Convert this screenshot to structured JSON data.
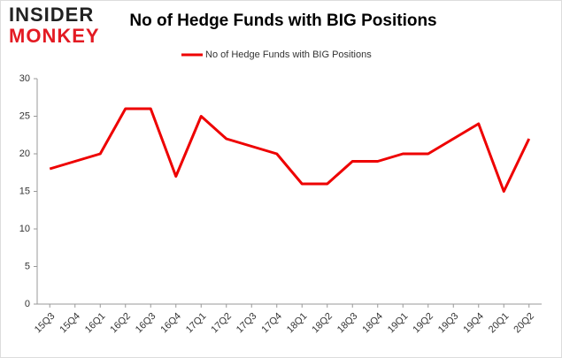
{
  "logo": {
    "line1": "INSIDER",
    "line2": "MONKEY"
  },
  "chart_data": {
    "type": "line",
    "title": "No of Hedge Funds with BIG Positions",
    "categories": [
      "15Q3",
      "15Q4",
      "16Q1",
      "16Q2",
      "16Q3",
      "16Q4",
      "17Q1",
      "17Q2",
      "17Q3",
      "17Q4",
      "18Q1",
      "18Q2",
      "18Q3",
      "18Q4",
      "19Q1",
      "19Q2",
      "19Q3",
      "19Q4",
      "20Q1",
      "20Q2"
    ],
    "series": [
      {
        "name": "No of Hedge Funds with BIG Positions",
        "color": "#ee0000",
        "values": [
          18,
          19,
          20,
          26,
          26,
          17,
          25,
          22,
          21,
          20,
          16,
          16,
          19,
          19,
          20,
          20,
          22,
          24,
          15,
          22
        ]
      }
    ],
    "ylim": [
      0,
      30
    ],
    "yticks": [
      0,
      5,
      10,
      15,
      20,
      25,
      30
    ],
    "grid": false,
    "legend": "top"
  }
}
